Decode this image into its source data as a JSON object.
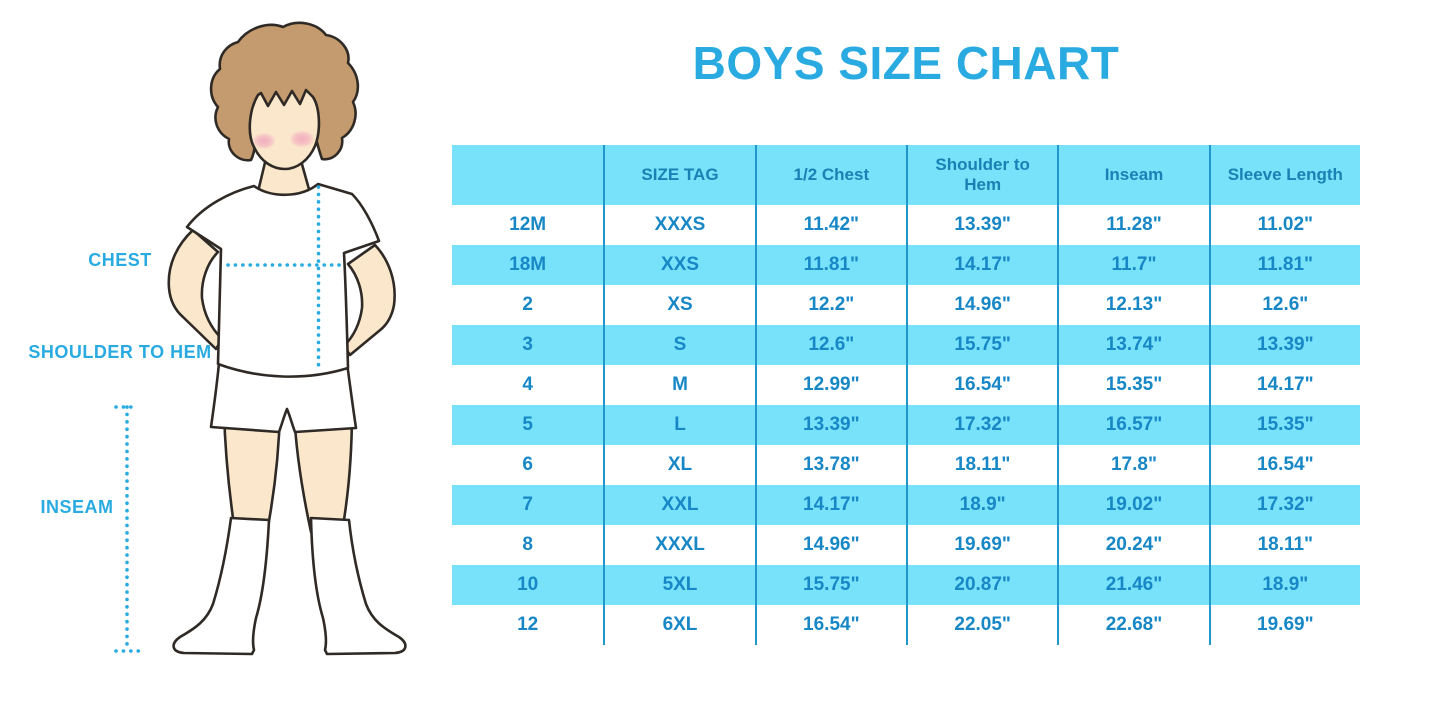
{
  "title": "BOYS SIZE CHART",
  "diagram_labels": {
    "chest": "CHEST",
    "shoulder_to_hem": "SHOULDER TO HEM",
    "inseam": "INSEAM"
  },
  "chart_data": {
    "type": "table",
    "title": "BOYS SIZE CHART",
    "columns": [
      "",
      "SIZE TAG",
      "1/2 Chest",
      "Shoulder to Hem",
      "Inseam",
      "Sleeve Length"
    ],
    "rows": [
      [
        "12M",
        "XXXS",
        "11.42\"",
        "13.39\"",
        "11.28\"",
        "11.02\""
      ],
      [
        "18M",
        "XXS",
        "11.81\"",
        "14.17\"",
        "11.7\"",
        "11.81\""
      ],
      [
        "2",
        "XS",
        "12.2\"",
        "14.96\"",
        "12.13\"",
        "12.6\""
      ],
      [
        "3",
        "S",
        "12.6\"",
        "15.75\"",
        "13.74\"",
        "13.39\""
      ],
      [
        "4",
        "M",
        "12.99\"",
        "16.54\"",
        "15.35\"",
        "14.17\""
      ],
      [
        "5",
        "L",
        "13.39\"",
        "17.32\"",
        "16.57\"",
        "15.35\""
      ],
      [
        "6",
        "XL",
        "13.78\"",
        "18.11\"",
        "17.8\"",
        "16.54\""
      ],
      [
        "7",
        "XXL",
        "14.17\"",
        "18.9\"",
        "19.02\"",
        "17.32\""
      ],
      [
        "8",
        "XXXL",
        "14.96\"",
        "19.69\"",
        "20.24\"",
        "18.11\""
      ],
      [
        "10",
        "5XL",
        "15.75\"",
        "20.87\"",
        "21.46\"",
        "18.9\""
      ],
      [
        "12",
        "6XL",
        "16.54\"",
        "22.05\"",
        "22.68\"",
        "19.69\""
      ]
    ],
    "layout": {
      "header_background": "cyan",
      "row_striping": "white / cyan alternating starting white",
      "column_dividers": true,
      "horizontal_gridlines": false
    }
  },
  "colors": {
    "accent_blue": "#29ABE2",
    "table_row_cyan": "#77E2FA",
    "table_divider": "#1F97C8",
    "table_text": "#1787C6",
    "header_text": "#1981B3",
    "skin": "#FBE8CC",
    "hair": "#C49B6E",
    "blush": "#F2ABBE",
    "outline": "#2F2A25"
  }
}
